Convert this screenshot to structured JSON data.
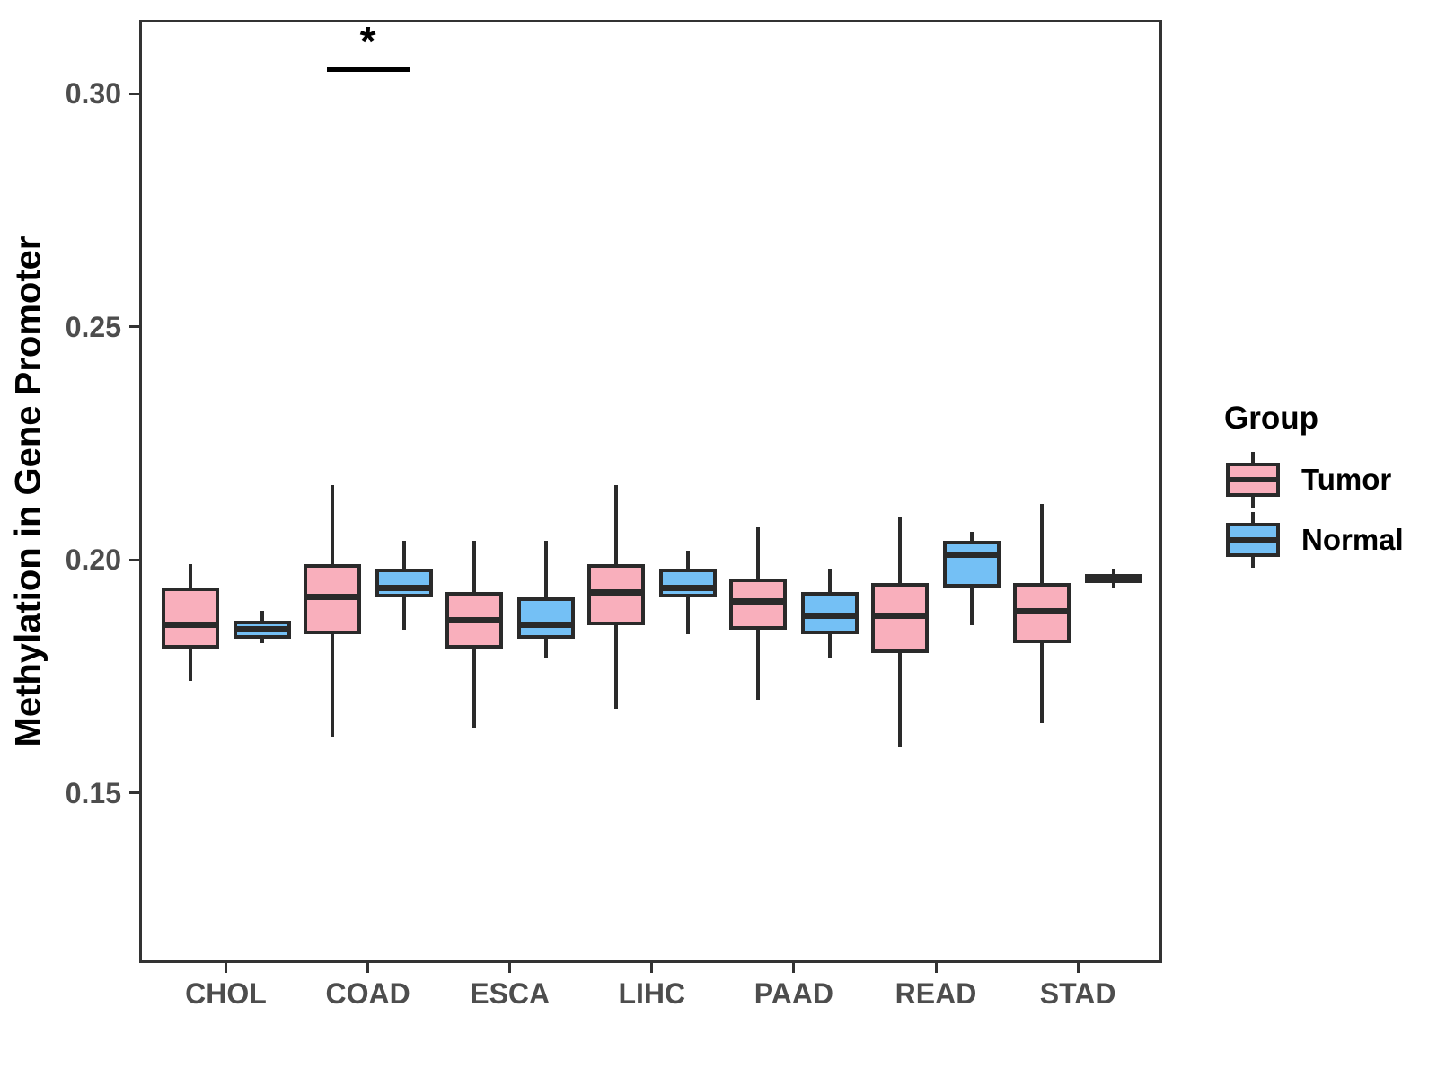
{
  "figure": {
    "legend": {
      "title": "Group",
      "items": [
        {
          "label": "Tumor",
          "color": "#F9AFBC"
        },
        {
          "label": "Normal",
          "color": "#74C0F5"
        }
      ]
    }
  },
  "chart_data": {
    "type": "boxplot",
    "title": "",
    "xlabel": "",
    "ylabel": "Methylation in Gene Promoter",
    "categories": [
      "CHOL",
      "COAD",
      "ESCA",
      "LIHC",
      "PAAD",
      "READ",
      "STAD"
    ],
    "ylim": [
      0.1135,
      0.3158
    ],
    "y_tick_values": [
      0.15,
      0.2,
      0.25,
      0.3
    ],
    "y_tick_labels": [
      "0.15",
      "0.20",
      "0.25",
      "0.30"
    ],
    "grid": "off",
    "legend_position": "right",
    "series": [
      {
        "name": "Tumor",
        "color": "#F9AFBC",
        "boxes": [
          {
            "min": 0.174,
            "q1": 0.181,
            "median": 0.186,
            "q3": 0.194,
            "max": 0.199
          },
          {
            "min": 0.162,
            "q1": 0.184,
            "median": 0.192,
            "q3": 0.199,
            "max": 0.216
          },
          {
            "min": 0.164,
            "q1": 0.181,
            "median": 0.187,
            "q3": 0.193,
            "max": 0.204
          },
          {
            "min": 0.168,
            "q1": 0.186,
            "median": 0.193,
            "q3": 0.199,
            "max": 0.216
          },
          {
            "min": 0.17,
            "q1": 0.185,
            "median": 0.191,
            "q3": 0.196,
            "max": 0.207
          },
          {
            "min": 0.16,
            "q1": 0.18,
            "median": 0.188,
            "q3": 0.195,
            "max": 0.209
          },
          {
            "min": 0.165,
            "q1": 0.182,
            "median": 0.189,
            "q3": 0.195,
            "max": 0.212
          }
        ]
      },
      {
        "name": "Normal",
        "color": "#74C0F5",
        "boxes": [
          {
            "min": 0.182,
            "q1": 0.183,
            "median": 0.185,
            "q3": 0.187,
            "max": 0.189
          },
          {
            "min": 0.185,
            "q1": 0.192,
            "median": 0.194,
            "q3": 0.198,
            "max": 0.204
          },
          {
            "min": 0.179,
            "q1": 0.183,
            "median": 0.186,
            "q3": 0.192,
            "max": 0.204
          },
          {
            "min": 0.184,
            "q1": 0.192,
            "median": 0.194,
            "q3": 0.198,
            "max": 0.202
          },
          {
            "min": 0.179,
            "q1": 0.184,
            "median": 0.188,
            "q3": 0.193,
            "max": 0.198
          },
          {
            "min": 0.186,
            "q1": 0.194,
            "median": 0.201,
            "q3": 0.204,
            "max": 0.206
          },
          {
            "min": 0.194,
            "q1": 0.195,
            "median": 0.196,
            "q3": 0.197,
            "max": 0.198
          }
        ]
      }
    ],
    "annotations": [
      {
        "type": "significance-bracket",
        "label": "*",
        "category": "COAD",
        "y": 0.3055
      }
    ]
  }
}
